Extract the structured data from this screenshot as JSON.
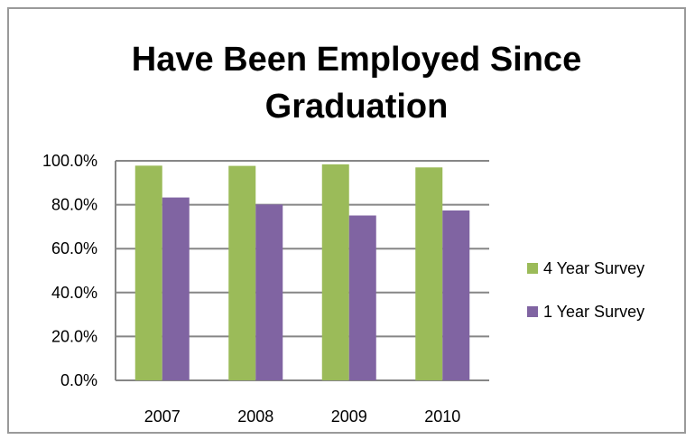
{
  "chart_data": {
    "type": "bar",
    "title_lines": [
      "Have Been Employed Since",
      "Graduation"
    ],
    "categories": [
      "2007",
      "2008",
      "2009",
      "2010"
    ],
    "series": [
      {
        "name": "4 Year Survey",
        "color": "#9BBB59",
        "values": [
          97.8,
          97.7,
          98.4,
          97.0
        ]
      },
      {
        "name": "1 Year Survey",
        "color": "#8064A2",
        "values": [
          83.3,
          80.1,
          75.1,
          77.4
        ]
      }
    ],
    "ylim": [
      0,
      100
    ],
    "yticks": [
      0,
      20,
      40,
      60,
      80,
      100
    ],
    "ytick_labels": [
      "0.0%",
      "20.0%",
      "40.0%",
      "60.0%",
      "80.0%",
      "100.0%"
    ],
    "grid": true,
    "legend_position": "right",
    "gridline_color": "#868686"
  }
}
